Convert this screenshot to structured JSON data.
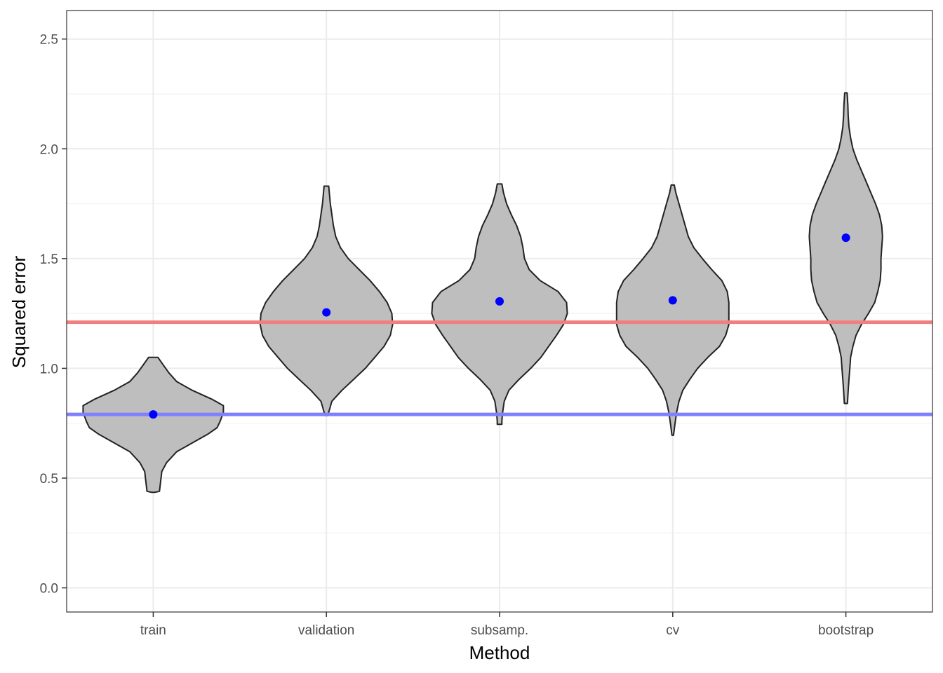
{
  "chart_data": {
    "type": "violin",
    "xlabel": "Method",
    "ylabel": "Squared error",
    "ylim": [
      -0.11,
      2.63
    ],
    "y_ticks": [
      0.0,
      0.5,
      1.0,
      1.5,
      2.0,
      2.5
    ],
    "y_tick_labels": [
      "0.0",
      "0.5",
      "1.0",
      "1.5",
      "2.0",
      "2.5"
    ],
    "categories": [
      "train",
      "validation",
      "subsamp.",
      "cv",
      "bootstrap"
    ],
    "means": [
      0.79,
      1.255,
      1.305,
      1.31,
      1.595
    ],
    "ranges": [
      [
        0.435,
        1.05
      ],
      [
        0.785,
        1.83
      ],
      [
        0.745,
        1.84
      ],
      [
        0.695,
        1.835
      ],
      [
        0.84,
        2.255
      ]
    ],
    "violins": [
      {
        "name": "train",
        "profile": [
          [
            0.435,
            0.02
          ],
          [
            0.44,
            0.08
          ],
          [
            0.47,
            0.09
          ],
          [
            0.5,
            0.1
          ],
          [
            0.53,
            0.11
          ],
          [
            0.57,
            0.17
          ],
          [
            0.62,
            0.3
          ],
          [
            0.66,
            0.5
          ],
          [
            0.7,
            0.7
          ],
          [
            0.73,
            0.82
          ],
          [
            0.76,
            0.86
          ],
          [
            0.8,
            0.9
          ],
          [
            0.83,
            0.9
          ],
          [
            0.86,
            0.75
          ],
          [
            0.9,
            0.5
          ],
          [
            0.94,
            0.3
          ],
          [
            0.98,
            0.2
          ],
          [
            1.02,
            0.12
          ],
          [
            1.05,
            0.06
          ]
        ]
      },
      {
        "name": "validation",
        "profile": [
          [
            0.785,
            0.02
          ],
          [
            0.8,
            0.03
          ],
          [
            0.85,
            0.07
          ],
          [
            0.9,
            0.2
          ],
          [
            0.95,
            0.35
          ],
          [
            1.0,
            0.5
          ],
          [
            1.05,
            0.62
          ],
          [
            1.1,
            0.74
          ],
          [
            1.15,
            0.82
          ],
          [
            1.2,
            0.85
          ],
          [
            1.25,
            0.84
          ],
          [
            1.3,
            0.78
          ],
          [
            1.35,
            0.68
          ],
          [
            1.4,
            0.56
          ],
          [
            1.45,
            0.42
          ],
          [
            1.5,
            0.28
          ],
          [
            1.55,
            0.18
          ],
          [
            1.6,
            0.12
          ],
          [
            1.65,
            0.09
          ],
          [
            1.7,
            0.07
          ],
          [
            1.75,
            0.05
          ],
          [
            1.83,
            0.03
          ]
        ]
      },
      {
        "name": "subsamp.",
        "profile": [
          [
            0.745,
            0.03
          ],
          [
            0.76,
            0.03
          ],
          [
            0.8,
            0.04
          ],
          [
            0.85,
            0.06
          ],
          [
            0.9,
            0.12
          ],
          [
            0.95,
            0.25
          ],
          [
            1.0,
            0.4
          ],
          [
            1.05,
            0.53
          ],
          [
            1.1,
            0.63
          ],
          [
            1.15,
            0.73
          ],
          [
            1.2,
            0.82
          ],
          [
            1.25,
            0.87
          ],
          [
            1.3,
            0.86
          ],
          [
            1.35,
            0.75
          ],
          [
            1.4,
            0.52
          ],
          [
            1.45,
            0.38
          ],
          [
            1.5,
            0.32
          ],
          [
            1.55,
            0.3
          ],
          [
            1.6,
            0.27
          ],
          [
            1.65,
            0.22
          ],
          [
            1.7,
            0.15
          ],
          [
            1.75,
            0.09
          ],
          [
            1.8,
            0.05
          ],
          [
            1.84,
            0.03
          ]
        ]
      },
      {
        "name": "cv",
        "profile": [
          [
            0.695,
            0.01
          ],
          [
            0.75,
            0.03
          ],
          [
            0.8,
            0.05
          ],
          [
            0.85,
            0.08
          ],
          [
            0.9,
            0.13
          ],
          [
            0.95,
            0.22
          ],
          [
            1.0,
            0.32
          ],
          [
            1.05,
            0.45
          ],
          [
            1.1,
            0.6
          ],
          [
            1.15,
            0.68
          ],
          [
            1.2,
            0.72
          ],
          [
            1.25,
            0.72
          ],
          [
            1.3,
            0.72
          ],
          [
            1.35,
            0.7
          ],
          [
            1.4,
            0.63
          ],
          [
            1.45,
            0.5
          ],
          [
            1.5,
            0.38
          ],
          [
            1.55,
            0.27
          ],
          [
            1.6,
            0.2
          ],
          [
            1.65,
            0.16
          ],
          [
            1.7,
            0.12
          ],
          [
            1.75,
            0.08
          ],
          [
            1.8,
            0.04
          ],
          [
            1.835,
            0.02
          ]
        ]
      },
      {
        "name": "bootstrap",
        "profile": [
          [
            0.84,
            0.02
          ],
          [
            0.9,
            0.03
          ],
          [
            0.95,
            0.04
          ],
          [
            1.0,
            0.05
          ],
          [
            1.05,
            0.06
          ],
          [
            1.1,
            0.09
          ],
          [
            1.15,
            0.13
          ],
          [
            1.2,
            0.2
          ],
          [
            1.25,
            0.29
          ],
          [
            1.3,
            0.37
          ],
          [
            1.35,
            0.41
          ],
          [
            1.4,
            0.44
          ],
          [
            1.45,
            0.45
          ],
          [
            1.5,
            0.45
          ],
          [
            1.55,
            0.46
          ],
          [
            1.6,
            0.47
          ],
          [
            1.65,
            0.46
          ],
          [
            1.7,
            0.43
          ],
          [
            1.75,
            0.38
          ],
          [
            1.8,
            0.32
          ],
          [
            1.85,
            0.26
          ],
          [
            1.9,
            0.2
          ],
          [
            1.95,
            0.14
          ],
          [
            2.0,
            0.09
          ],
          [
            2.05,
            0.06
          ],
          [
            2.1,
            0.04
          ],
          [
            2.15,
            0.03
          ],
          [
            2.2,
            0.025
          ],
          [
            2.255,
            0.015
          ]
        ]
      }
    ],
    "hlines": [
      {
        "name": "red-reference-line",
        "y": 1.21,
        "color": "#f08080"
      },
      {
        "name": "blue-reference-line",
        "y": 0.79,
        "color": "#8080ff"
      }
    ],
    "colors": {
      "violin_fill": "#bebebe",
      "violin_stroke": "#222222",
      "mean_point": "#0000ff",
      "grid_major": "#ebebeb",
      "grid_minor": "#f2f2f2",
      "panel_border": "#333333"
    }
  }
}
